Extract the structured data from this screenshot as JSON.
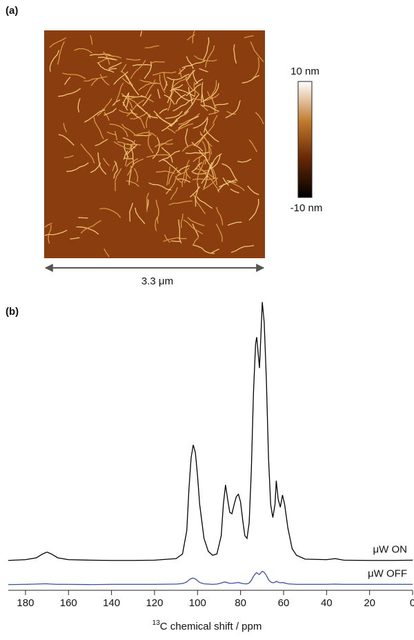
{
  "panel_a": {
    "label": "(a)",
    "colorbar_max": "10 nm",
    "colorbar_min": "-10 nm",
    "scale_bar": "3.3 μm"
  },
  "chart_data": {
    "type": "line",
    "panel_label": "(b)",
    "xlabel_sup": "13",
    "xlabel": "C chemical shift / ppm",
    "x": [
      188,
      180,
      175,
      172,
      170,
      168,
      165,
      160,
      150,
      140,
      130,
      120,
      110,
      107,
      105,
      104,
      103,
      102,
      101,
      100,
      99,
      97,
      95,
      93,
      91,
      89,
      88,
      87,
      86,
      85,
      84,
      83,
      82,
      81,
      80,
      79,
      78,
      77,
      76,
      75,
      74,
      73,
      72.5,
      72,
      71.2,
      70.5,
      69.9,
      69,
      68,
      67,
      66,
      65,
      64,
      63.4,
      62.5,
      61.5,
      60.5,
      59.5,
      58,
      56,
      54,
      50,
      40,
      36,
      32,
      20,
      10,
      0
    ],
    "series": [
      {
        "name": "μW ON",
        "color": "#000000",
        "values": [
          0.5,
          0.8,
          1.5,
          3,
          3.7,
          3,
          1.5,
          0.8,
          0.6,
          0.5,
          0.5,
          0.6,
          1.2,
          3,
          12,
          28,
          40,
          45,
          42,
          33,
          22,
          9,
          4,
          2.5,
          3,
          10,
          22,
          29.6,
          24,
          19,
          18.5,
          22,
          25,
          26,
          23,
          16,
          10,
          9,
          15,
          35,
          65,
          84,
          86.5,
          82,
          74.6,
          88,
          100,
          92,
          70,
          40,
          22,
          17,
          22,
          31.2,
          24,
          21,
          25.7,
          22,
          13,
          5,
          2.5,
          1,
          0.8,
          1.2,
          0.6,
          0.5,
          0.5,
          0.6
        ]
      },
      {
        "name": "μW OFF",
        "color": "#3a4ea0",
        "values": [
          -8.8,
          -8.7,
          -8.6,
          -8.5,
          -8.5,
          -8.6,
          -8.7,
          -8.7,
          -8.8,
          -8.7,
          -8.7,
          -8.7,
          -8.6,
          -8.4,
          -7.8,
          -7,
          -6.5,
          -6.3,
          -6.6,
          -7.3,
          -8,
          -8.5,
          -8.6,
          -8.7,
          -8.6,
          -8.2,
          -7.9,
          -7.8,
          -8.1,
          -8.3,
          -8.3,
          -8.2,
          -8.1,
          -8,
          -8.2,
          -8.4,
          -8.5,
          -8.5,
          -8.2,
          -7.2,
          -5.6,
          -4.5,
          -4.2,
          -4.6,
          -4.9,
          -4.2,
          -3.7,
          -4.1,
          -5.3,
          -6.9,
          -7.8,
          -8.1,
          -7.9,
          -7.5,
          -7.9,
          -8.1,
          -8,
          -8.2,
          -8.5,
          -8.6,
          -8.7,
          -8.7,
          -8.7,
          -8.6,
          -8.7,
          -8.7,
          -8.7,
          -8.7
        ]
      }
    ],
    "xlim": [
      188,
      0
    ],
    "xticks": [
      180,
      160,
      140,
      120,
      100,
      80,
      60,
      40,
      20,
      0
    ],
    "ylim": [
      -11,
      102
    ]
  }
}
